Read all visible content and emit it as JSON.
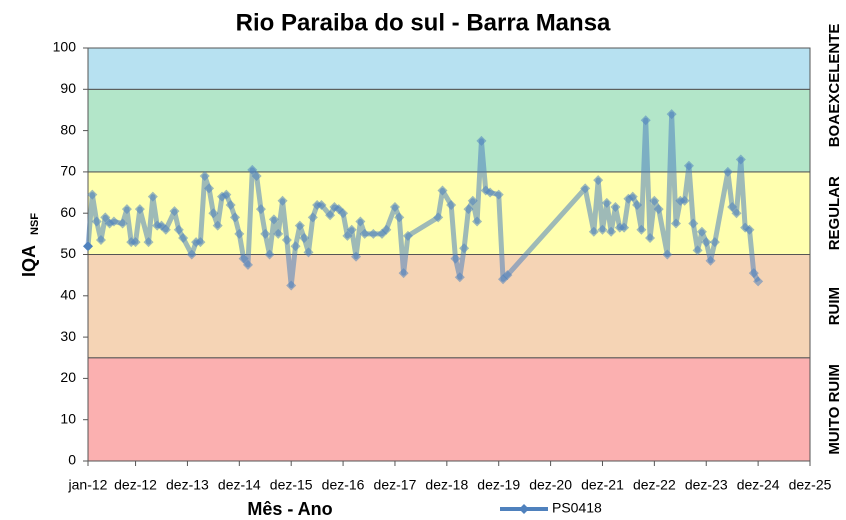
{
  "chart_data": {
    "type": "line",
    "title": "Rio Paraiba do sul - Barra Mansa",
    "xlabel": "Mês - Ano",
    "ylabel": "IQA",
    "ylabel_sub": "NSF",
    "ylim": [
      0,
      100
    ],
    "yticks": [
      0,
      10,
      20,
      30,
      40,
      50,
      60,
      70,
      80,
      90,
      100
    ],
    "xlim": [
      "2012-01",
      "2025-12"
    ],
    "xticks": [
      {
        "value": "2012-01",
        "label": "jan-12"
      },
      {
        "value": "2012-12",
        "label": "dez-12"
      },
      {
        "value": "2013-12",
        "label": "dez-13"
      },
      {
        "value": "2014-12",
        "label": "dez-14"
      },
      {
        "value": "2015-12",
        "label": "dez-15"
      },
      {
        "value": "2016-12",
        "label": "dez-16"
      },
      {
        "value": "2017-12",
        "label": "dez-17"
      },
      {
        "value": "2018-12",
        "label": "dez-18"
      },
      {
        "value": "2019-12",
        "label": "dez-19"
      },
      {
        "value": "2020-12",
        "label": "dez-20"
      },
      {
        "value": "2021-12",
        "label": "dez-21"
      },
      {
        "value": "2022-12",
        "label": "dez-22"
      },
      {
        "value": "2023-12",
        "label": "dez-23"
      },
      {
        "value": "2024-12",
        "label": "dez-24"
      },
      {
        "value": "2025-12",
        "label": "dez-25"
      }
    ],
    "bands": [
      {
        "label": "MUITO RUIM",
        "from": 0,
        "to": 25,
        "color": "#fbb0b0"
      },
      {
        "label": "RUIM",
        "from": 25,
        "to": 50,
        "color": "#f5d4b5"
      },
      {
        "label": "REGULAR",
        "from": 50,
        "to": 70,
        "color": "#ffffaf"
      },
      {
        "label": "BOA",
        "from": 70,
        "to": 90,
        "color": "#b3e6c9"
      },
      {
        "label": "EXCELENTE",
        "from": 90,
        "to": 100,
        "color": "#b7e1f1"
      }
    ],
    "x": [
      "2012-01",
      "2012-02",
      "2012-03",
      "2012-04",
      "2012-05",
      "2012-06",
      "2012-07",
      "2012-09",
      "2012-10",
      "2012-11",
      "2012-12",
      "2013-01",
      "2013-03",
      "2013-04",
      "2013-05",
      "2013-06",
      "2013-07",
      "2013-09",
      "2013-10",
      "2013-11",
      "2014-01",
      "2014-02",
      "2014-03",
      "2014-04",
      "2014-05",
      "2014-06",
      "2014-07",
      "2014-08",
      "2014-09",
      "2014-10",
      "2014-11",
      "2014-12",
      "2015-01",
      "2015-02",
      "2015-03",
      "2015-04",
      "2015-05",
      "2015-06",
      "2015-07",
      "2015-08",
      "2015-09",
      "2015-10",
      "2015-11",
      "2015-12",
      "2016-01",
      "2016-02",
      "2016-03",
      "2016-04",
      "2016-05",
      "2016-06",
      "2016-07",
      "2016-09",
      "2016-10",
      "2016-11",
      "2016-12",
      "2017-01",
      "2017-02",
      "2017-03",
      "2017-04",
      "2017-05",
      "2017-07",
      "2017-09",
      "2017-10",
      "2017-12",
      "2018-01",
      "2018-02",
      "2018-03",
      "2018-10",
      "2018-11",
      "2019-01",
      "2019-02",
      "2019-03",
      "2019-04",
      "2019-05",
      "2019-06",
      "2019-07",
      "2019-08",
      "2019-09",
      "2019-10",
      "2019-12",
      "2020-01",
      "2020-02",
      "2021-08",
      "2021-10",
      "2021-11",
      "2021-12",
      "2022-01",
      "2022-02",
      "2022-03",
      "2022-04",
      "2022-05",
      "2022-06",
      "2022-07",
      "2022-08",
      "2022-09",
      "2022-10",
      "2022-11",
      "2022-12",
      "2023-01",
      "2023-03",
      "2023-04",
      "2023-05",
      "2023-06",
      "2023-07",
      "2023-08",
      "2023-09",
      "2023-10",
      "2023-11",
      "2023-12",
      "2024-01",
      "2024-02",
      "2024-05",
      "2024-06",
      "2024-07",
      "2024-08",
      "2024-09",
      "2024-10",
      "2024-11",
      "2024-12"
    ],
    "series": [
      {
        "name": "PS0418",
        "color": "#4f81bd",
        "values": [
          52,
          64.5,
          58,
          53.5,
          59,
          57.5,
          58,
          57.5,
          61,
          53,
          53,
          61,
          53,
          64,
          57,
          57,
          56,
          60.5,
          56,
          54,
          50,
          53,
          53,
          69,
          66,
          60,
          57,
          64,
          64.5,
          62,
          59,
          55,
          49,
          47.5,
          70.5,
          69,
          61,
          55,
          50,
          58.5,
          55,
          63,
          53.5,
          42.5,
          52,
          57,
          54,
          50.5,
          59,
          62,
          62,
          59.5,
          61.5,
          61,
          60,
          54.5,
          56,
          49.5,
          58,
          55,
          55,
          55,
          56,
          61.5,
          59,
          45.5,
          54.5,
          59,
          65.5,
          62,
          49,
          44.5,
          51.5,
          61,
          63,
          58,
          77.5,
          65.5,
          65,
          64.5,
          44,
          45,
          66,
          55.5,
          68,
          56,
          62.5,
          55.5,
          61.5,
          56.5,
          56.5,
          63.5,
          64,
          62,
          56,
          82.5,
          54,
          63,
          61,
          50,
          84,
          57.5,
          63,
          63,
          71.5,
          57.5,
          51,
          55.5,
          53,
          48.5,
          53,
          70,
          61.5,
          60,
          73,
          56.5,
          56,
          45.5,
          43.5
        ]
      }
    ]
  }
}
